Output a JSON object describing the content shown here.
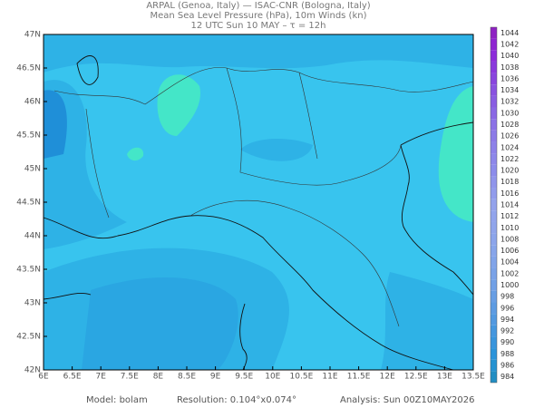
{
  "header": {
    "line1": "ARPAL (Genoa, Italy)  —  ISAC-CNR (Bologna, Italy)",
    "line2": "Mean Sea Level Pressure (hPa), 10m Winds (kn)",
    "line3": "12 UTC Sun 10 MAY  –  τ = 12h"
  },
  "map": {
    "lat_labels": [
      "47N",
      "46.5N",
      "46N",
      "45.5N",
      "45N",
      "44.5N",
      "44N",
      "43.5N",
      "43N",
      "42.5N",
      "42N"
    ],
    "lon_labels": [
      "6E",
      "6.5E",
      "7E",
      "7.5E",
      "8E",
      "8.5E",
      "9E",
      "9.5E",
      "10E",
      "10.5E",
      "11E",
      "11.5E",
      "12E",
      "12.5E",
      "13E",
      "13.5E"
    ]
  },
  "colorbar": {
    "levels": [
      1044,
      1042,
      1040,
      1038,
      1036,
      1034,
      1032,
      1030,
      1028,
      1026,
      1024,
      1022,
      1020,
      1018,
      1016,
      1014,
      1012,
      1010,
      1008,
      1006,
      1004,
      1002,
      1000,
      998,
      996,
      994,
      992,
      990,
      988,
      986,
      984
    ]
  },
  "footer": {
    "model": "Model: bolam",
    "resolution": "Resolution: 0.104°x0.074°",
    "analysis": "Analysis: Sun 00Z10MAY2026"
  }
}
